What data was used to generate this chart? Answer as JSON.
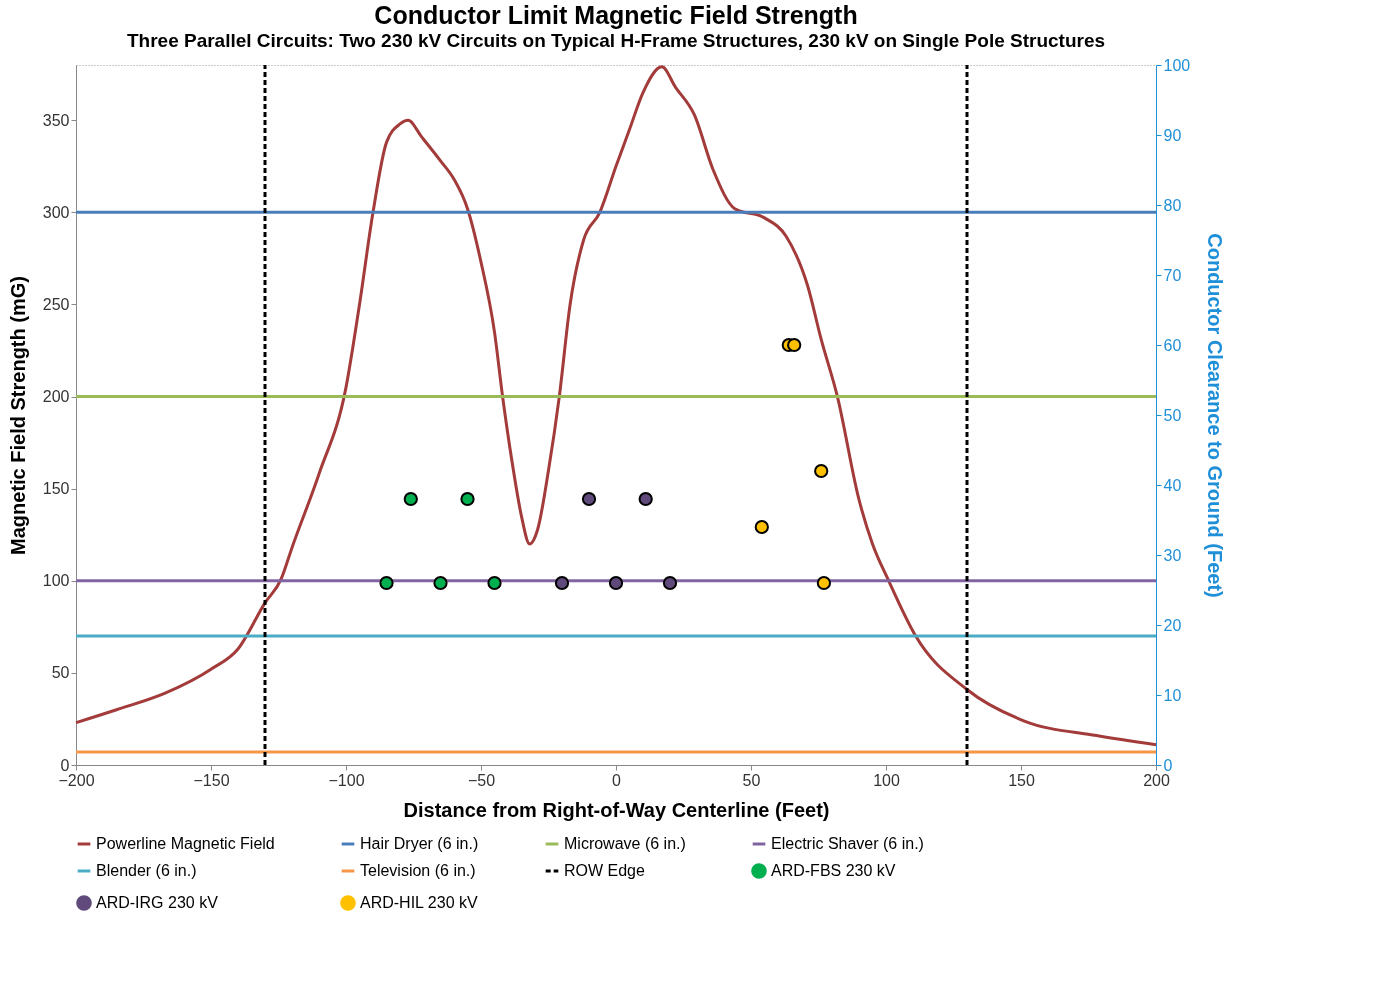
{
  "chart_data": {
    "type": "line",
    "title": "Conductor Limit Magnetic Field Strength",
    "subtitle": "Three Parallel Circuits: Two 230 kV Circuits on Typical H-Frame Structures, 230 kV on Single Pole Structures",
    "xlabel": "Distance from Right-of-Way Centerline (Feet)",
    "ylabel": "Magnetic Field Strength (mG)",
    "y2label": "Conductor Clearance to Ground (Feet)",
    "xlim": [
      -200,
      200
    ],
    "xticks": [
      -200,
      -150,
      -100,
      -50,
      0,
      50,
      100,
      150,
      200
    ],
    "ylim": [
      0,
      380
    ],
    "yticks": [
      0,
      50,
      100,
      150,
      200,
      250,
      300,
      350
    ],
    "y2lim": [
      0,
      100
    ],
    "y2ticks": [
      0,
      10,
      20,
      30,
      40,
      50,
      60,
      70,
      80,
      90,
      100
    ],
    "grid": false,
    "legend": "bottom",
    "series": [
      {
        "name": "Powerline Magnetic Field",
        "color": "#a23b3a",
        "x": [
          -200,
          -185,
          -167,
          -150,
          -140,
          -130,
          -124,
          -120,
          -110,
          -100,
          -95,
          -90,
          -85,
          -80,
          -77,
          -72,
          -65,
          -60,
          -55,
          -50,
          -45,
          -42,
          -38,
          -35,
          -32,
          -29,
          -25,
          -21,
          -17,
          -12,
          -6,
          0,
          5,
          10,
          17,
          22,
          29,
          36,
          44,
          55,
          63,
          71,
          76,
          82,
          90,
          95,
          101,
          111,
          130,
          151,
          178,
          200
        ],
        "values": [
          23,
          30,
          39,
          52,
          63,
          88,
          101,
          118,
          158,
          205,
          250,
          300,
          338,
          348,
          350,
          341,
          328,
          318,
          302,
          273,
          235,
          200,
          160,
          135,
          120,
          128,
          160,
          200,
          250,
          285,
          300,
          325,
          345,
          365,
          379,
          368,
          353,
          323,
          302,
          297,
          287,
          260,
          231,
          200,
          144,
          120,
          100,
          70,
          41,
          24,
          16,
          11
        ]
      },
      {
        "name": "ARD-FBS 230 kV",
        "type": "scatter",
        "axis": "y2",
        "color": "#00b050",
        "x": [
          -76,
          -55,
          -85,
          -65,
          -45
        ],
        "values": [
          38,
          38,
          26,
          26,
          26
        ]
      },
      {
        "name": "ARD-IRG 230 kV",
        "type": "scatter",
        "axis": "y2",
        "color": "#604a7b",
        "x": [
          -10,
          11,
          -20,
          0,
          20
        ],
        "values": [
          38,
          38,
          26,
          26,
          26
        ]
      },
      {
        "name": "ARD-HIL 230 kV",
        "type": "scatter",
        "axis": "y2",
        "color": "#ffc000",
        "x": [
          54,
          76,
          77,
          64,
          66
        ],
        "values": [
          34,
          42,
          26,
          60,
          60
        ]
      }
    ],
    "ref_lines": [
      {
        "axis": "y",
        "value": 300,
        "label": "Hair Dryer (6 in.)",
        "color": "#4a7ebb"
      },
      {
        "axis": "y",
        "value": 200,
        "label": "Microwave (6 in.)",
        "color": "#9bbb59"
      },
      {
        "axis": "y",
        "value": 100,
        "label": "Electric Shaver (6 in.)",
        "color": "#8064a2"
      },
      {
        "axis": "y",
        "value": 70,
        "label": "Blender (6 in.)",
        "color": "#4bacc6"
      },
      {
        "axis": "y",
        "value": 7,
        "label": "Television (6 in.)",
        "color": "#f79646"
      },
      {
        "axis": "x",
        "value": -130,
        "label": "ROW Edge",
        "color": "#000000",
        "line_style": "dashed"
      },
      {
        "axis": "x",
        "value": 130,
        "label": null,
        "color": "#000000",
        "line_style": "dashed"
      }
    ]
  }
}
